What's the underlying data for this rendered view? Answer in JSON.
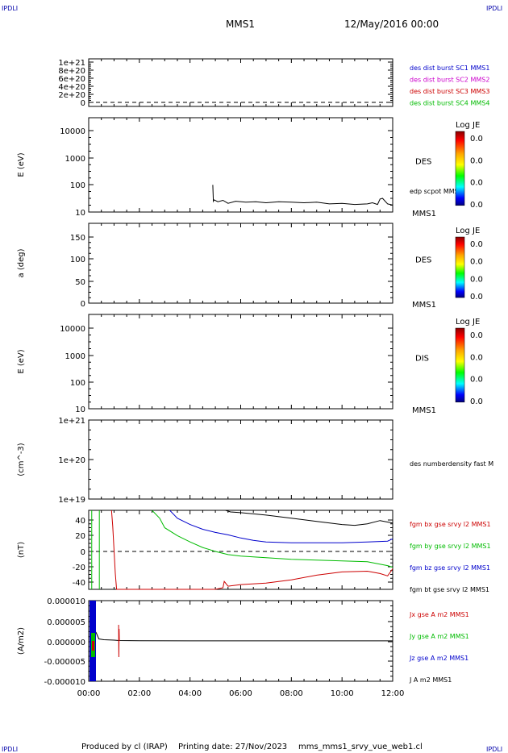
{
  "header": {
    "corner_left": "IPDLI",
    "corner_right": "IPDLI",
    "spacecraft": "MMS1",
    "date": "12/May/2016 00:00"
  },
  "footer": {
    "produced_by": "Produced by cl (IRAP)",
    "printing_date": "Printing date: 27/Nov/2023",
    "filename": "mms_mms1_srvy_vue_web1.cl",
    "corner_left": "IPDLI",
    "corner_right": "IPDLI"
  },
  "time_axis": {
    "labels": [
      "00:00",
      "02:00",
      "04:00",
      "06:00",
      "08:00",
      "10:00",
      "12:00"
    ],
    "start_hours": 0,
    "end_hours": 12
  },
  "chart_data": [
    {
      "type": "line",
      "panel": "burst-flags",
      "ylabel": "",
      "yticks": [
        "1e+21",
        "8e+20",
        "6e+20",
        "4e+20",
        "2e+20",
        "0"
      ],
      "legend": [
        {
          "name": "des dist burst SC1 MMS1",
          "color": "#0000cc"
        },
        {
          "name": "des dist burst SC2 MMS2",
          "color": "#cc00cc"
        },
        {
          "name": "des dist burst SC3 MMS3",
          "color": "#cc0000"
        },
        {
          "name": "des dist burst SC4 MMS4",
          "color": "#00bb00"
        }
      ]
    },
    {
      "type": "heatmap",
      "panel": "des-energy",
      "ylabel": "E (eV)",
      "scale": "log",
      "yticks": [
        "10000",
        "1000",
        "100",
        "10"
      ],
      "ylim": [
        10,
        14000
      ],
      "label": "DES",
      "sub_label": "MMS1",
      "overlay_label": "edp scpot MMS1",
      "colorbar": {
        "title": "Log JE",
        "ticks": [
          "0.0",
          "0.0",
          "0.0",
          "0.0"
        ]
      },
      "series": [
        {
          "name": "edp scpot MMS1",
          "color": "#000000",
          "x": [
            4.9,
            4.92,
            4.95,
            5.1,
            5.3,
            5.5,
            5.8,
            6.2,
            6.6,
            7.0,
            7.5,
            8.0,
            8.5,
            9.0,
            9.5,
            10.0,
            10.5,
            11.0,
            11.2,
            11.4,
            11.5,
            11.6,
            11.8,
            12.0
          ],
          "y": [
            100,
            25,
            28,
            24,
            27,
            21,
            25,
            23,
            24,
            22,
            24,
            23,
            22,
            23,
            20,
            21,
            19,
            20,
            22,
            19,
            30,
            32,
            20,
            18
          ]
        }
      ]
    },
    {
      "type": "heatmap",
      "panel": "des-pitch",
      "ylabel": "a (deg)",
      "yticks": [
        "150",
        "100",
        "50",
        "0"
      ],
      "ylim": [
        0,
        180
      ],
      "label": "DES",
      "sub_label": "MMS1",
      "colorbar": {
        "title": "Log JE",
        "ticks": [
          "0.0",
          "0.0",
          "0.0",
          "0.0"
        ]
      }
    },
    {
      "type": "heatmap",
      "panel": "dis-energy",
      "ylabel": "E (eV)",
      "scale": "log",
      "yticks": [
        "10000",
        "1000",
        "100",
        "10"
      ],
      "ylim": [
        10,
        14000
      ],
      "label": "DIS",
      "sub_label": "MMS1",
      "colorbar": {
        "title": "Log JE",
        "ticks": [
          "0.0",
          "0.0",
          "0.0",
          "0.0"
        ]
      }
    },
    {
      "type": "line",
      "panel": "density",
      "ylabel": "(cm^-3)",
      "scale": "log",
      "yticks": [
        "1e+21",
        "1e+20",
        "1e+19"
      ],
      "ylim": [
        1e+19,
        1e+21
      ],
      "legend": [
        {
          "name": "des numberdensity fast M",
          "color": "#000000"
        }
      ]
    },
    {
      "type": "line",
      "panel": "magnetic-field",
      "ylabel": "(nT)",
      "yticks": [
        "40",
        "20",
        "0",
        "-20",
        "-40"
      ],
      "ylim": [
        -50,
        50
      ],
      "legend": [
        {
          "name": "fgm bx gse srvy l2 MMS1",
          "color": "#cc0000"
        },
        {
          "name": "fgm by gse srvy l2 MMS1",
          "color": "#00bb00"
        },
        {
          "name": "fgm bz gse srvy l2 MMS1",
          "color": "#0000cc"
        },
        {
          "name": "fgm bt gse srvy l2 MMS1",
          "color": "#000000"
        }
      ],
      "series": [
        {
          "name": "fgm bx gse srvy l2 MMS1",
          "color": "#cc0000",
          "x": [
            0.9,
            0.95,
            1.0,
            1.05,
            1.1,
            5.0,
            5.3,
            5.35,
            5.5,
            6.0,
            7.0,
            8.0,
            9.0,
            10.0,
            11.0,
            11.5,
            11.8,
            12.0
          ],
          "y": [
            50,
            30,
            0,
            -30,
            -50,
            -50,
            -48,
            -40,
            -46,
            -44,
            -42,
            -38,
            -32,
            -28,
            -27,
            -30,
            -33,
            -24
          ]
        },
        {
          "name": "fgm by gse srvy l2 MMS1",
          "color": "#00bb00",
          "x": [
            2.5,
            2.8,
            3.0,
            3.5,
            4.0,
            4.5,
            5.0,
            5.5,
            6.0,
            7.0,
            8.0,
            9.0,
            10.0,
            11.0,
            11.8,
            12.0
          ],
          "y": [
            50,
            40,
            28,
            18,
            10,
            3,
            -2,
            -6,
            -8,
            -10,
            -12,
            -13,
            -14,
            -15,
            -20,
            -22
          ]
        },
        {
          "name": "fgm bz gse srvy l2 MMS1",
          "color": "#0000cc",
          "x": [
            3.2,
            3.5,
            4.0,
            4.5,
            5.0,
            5.5,
            6.0,
            6.5,
            7.0,
            8.0,
            9.0,
            10.0,
            11.0,
            11.8,
            12.0
          ],
          "y": [
            50,
            40,
            32,
            26,
            22,
            19,
            15,
            12,
            10,
            9,
            9,
            9,
            10,
            11,
            14
          ]
        },
        {
          "name": "fgm bt gse srvy l2 MMS1",
          "color": "#000000",
          "x": [
            5.4,
            5.6,
            6.0,
            7.0,
            8.0,
            9.0,
            10.0,
            10.5,
            11.0,
            11.5,
            12.0
          ],
          "y": [
            50,
            48,
            47,
            44,
            40,
            36,
            32,
            31,
            33,
            37,
            34
          ]
        }
      ]
    },
    {
      "type": "line",
      "panel": "current-density",
      "ylabel": "(A/m2)",
      "yticks": [
        "0.000010",
        "0.000005",
        "0.000000",
        "-0.000005",
        "-0.000010"
      ],
      "ylim": [
        -1e-05,
        1e-05
      ],
      "legend": [
        {
          "name": "Jx gse A m2 MMS1",
          "color": "#cc0000"
        },
        {
          "name": "Jy gse A m2 MMS1",
          "color": "#00bb00"
        },
        {
          "name": "Jz gse A m2 MMS1",
          "color": "#0000cc"
        },
        {
          "name": "J A m2 MMS1",
          "color": "#000000"
        }
      ],
      "series": [
        {
          "name": "J A m2 MMS1",
          "color": "#000000",
          "x": [
            0.1,
            0.2,
            0.3,
            0.4,
            0.6,
            1.0,
            1.2,
            2.0,
            4.0,
            6.0,
            8.0,
            10.0,
            12.0
          ],
          "y": [
            4e-06,
            3e-06,
            2e-06,
            5e-07,
            3e-07,
            2e-07,
            1e-07,
            5e-08,
            2e-08,
            2e-08,
            2e-08,
            2e-08,
            2e-08
          ]
        },
        {
          "name": "Jx gse A m2 MMS1",
          "color": "#cc0000",
          "x": [
            1.18,
            1.19,
            1.2,
            1.21
          ],
          "y": [
            4e-06,
            -4e-06,
            3e-06,
            0.0
          ]
        }
      ]
    }
  ],
  "colorbar_gradient": [
    "#8b0000",
    "#ff0000",
    "#ff8c00",
    "#ffff00",
    "#00ff00",
    "#00ffff",
    "#0000ff",
    "#000080"
  ]
}
